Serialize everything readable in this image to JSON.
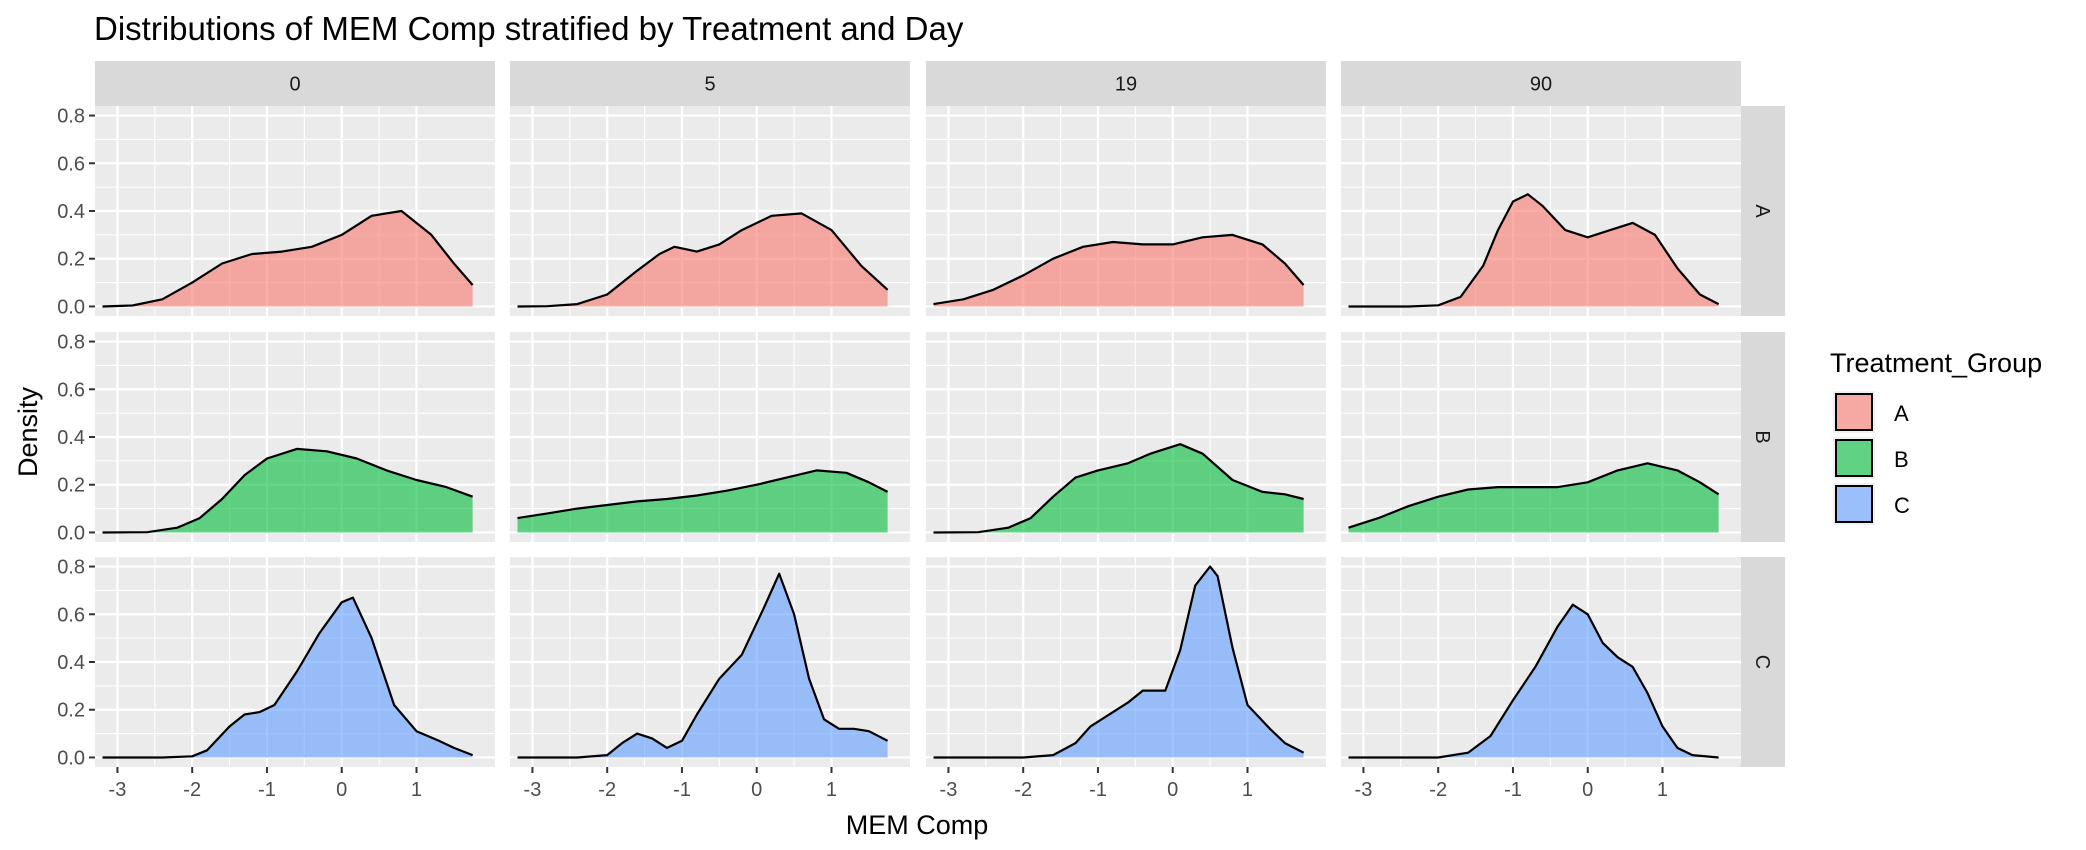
{
  "chart_data": {
    "type": "area",
    "title": "Distributions of MEM Comp stratified by Treatment and Day",
    "xlabel": "MEM Comp",
    "ylabel": "Density",
    "xlim": [
      -3.3,
      2.05
    ],
    "ylim": [
      -0.04,
      0.84
    ],
    "x_ticks": [
      -3,
      -2,
      -1,
      0,
      1
    ],
    "y_ticks": [
      0.0,
      0.2,
      0.4,
      0.6,
      0.8
    ],
    "y_tick_labels": [
      "0.0",
      "0.2",
      "0.4",
      "0.6",
      "0.8"
    ],
    "grid": true,
    "legend": {
      "title": "Treatment_Group",
      "position": "right",
      "items": [
        {
          "label": "A",
          "color": "#F8766D"
        },
        {
          "label": "B",
          "color": "#00BA38"
        },
        {
          "label": "C",
          "color": "#619CFF"
        }
      ]
    },
    "facet_columns": [
      "0",
      "5",
      "19",
      "90"
    ],
    "facet_rows": [
      "A",
      "B",
      "C"
    ],
    "panel_background": "#EBEBEB",
    "strip_background": "#D9D9D9",
    "fill_opacity": 0.6,
    "x_grid": [
      -3.2,
      -3.0,
      -2.6,
      -2.2,
      -1.8,
      -1.4,
      -1.0,
      -0.6,
      -0.2,
      0.2,
      0.6,
      1.0,
      1.4,
      1.8
    ],
    "curves": [
      [
        {
          "x": [
            -3.2,
            -2.8,
            -2.4,
            -2.0,
            -1.6,
            -1.2,
            -0.8,
            -0.4,
            0.0,
            0.4,
            0.8,
            1.2,
            1.5,
            1.75
          ],
          "y": [
            0.0,
            0.004,
            0.03,
            0.1,
            0.18,
            0.22,
            0.23,
            0.25,
            0.3,
            0.38,
            0.4,
            0.3,
            0.18,
            0.09
          ]
        },
        {
          "x": [
            -3.2,
            -2.8,
            -2.4,
            -2.0,
            -1.6,
            -1.3,
            -1.1,
            -0.8,
            -0.5,
            -0.2,
            0.2,
            0.6,
            1.0,
            1.4,
            1.75
          ],
          "y": [
            0.0,
            0.001,
            0.01,
            0.05,
            0.15,
            0.22,
            0.25,
            0.23,
            0.26,
            0.32,
            0.38,
            0.39,
            0.32,
            0.17,
            0.07
          ]
        },
        {
          "x": [
            -3.2,
            -2.8,
            -2.4,
            -2.0,
            -1.6,
            -1.2,
            -0.8,
            -0.4,
            0.0,
            0.4,
            0.8,
            1.2,
            1.5,
            1.75
          ],
          "y": [
            0.01,
            0.03,
            0.07,
            0.13,
            0.2,
            0.25,
            0.27,
            0.26,
            0.26,
            0.29,
            0.3,
            0.26,
            0.18,
            0.09
          ]
        },
        {
          "x": [
            -3.2,
            -2.4,
            -2.0,
            -1.7,
            -1.4,
            -1.2,
            -1.0,
            -0.8,
            -0.6,
            -0.3,
            0.0,
            0.3,
            0.6,
            0.9,
            1.2,
            1.5,
            1.75
          ],
          "y": [
            0.0,
            0.0,
            0.005,
            0.04,
            0.17,
            0.32,
            0.44,
            0.47,
            0.42,
            0.32,
            0.29,
            0.32,
            0.35,
            0.3,
            0.16,
            0.05,
            0.01
          ]
        }
      ],
      [
        {
          "x": [
            -3.2,
            -2.6,
            -2.2,
            -1.9,
            -1.6,
            -1.3,
            -1.0,
            -0.6,
            -0.2,
            0.2,
            0.6,
            1.0,
            1.4,
            1.75
          ],
          "y": [
            0.0,
            0.001,
            0.02,
            0.06,
            0.14,
            0.24,
            0.31,
            0.35,
            0.34,
            0.31,
            0.26,
            0.22,
            0.19,
            0.15
          ]
        },
        {
          "x": [
            -3.2,
            -2.8,
            -2.4,
            -2.0,
            -1.6,
            -1.2,
            -0.8,
            -0.4,
            0.0,
            0.4,
            0.8,
            1.2,
            1.5,
            1.75
          ],
          "y": [
            0.06,
            0.08,
            0.1,
            0.115,
            0.13,
            0.14,
            0.155,
            0.175,
            0.2,
            0.23,
            0.26,
            0.25,
            0.21,
            0.17
          ]
        },
        {
          "x": [
            -3.2,
            -2.6,
            -2.2,
            -1.9,
            -1.6,
            -1.3,
            -1.0,
            -0.6,
            -0.3,
            0.1,
            0.4,
            0.8,
            1.2,
            1.5,
            1.75
          ],
          "y": [
            0.0,
            0.001,
            0.02,
            0.06,
            0.15,
            0.23,
            0.26,
            0.29,
            0.33,
            0.37,
            0.33,
            0.22,
            0.17,
            0.16,
            0.14
          ]
        },
        {
          "x": [
            -3.2,
            -2.8,
            -2.4,
            -2.0,
            -1.6,
            -1.2,
            -0.8,
            -0.4,
            0.0,
            0.4,
            0.8,
            1.2,
            1.5,
            1.75
          ],
          "y": [
            0.02,
            0.06,
            0.11,
            0.15,
            0.18,
            0.19,
            0.19,
            0.19,
            0.21,
            0.26,
            0.29,
            0.26,
            0.21,
            0.16
          ]
        }
      ],
      [
        {
          "x": [
            -3.2,
            -2.4,
            -2.0,
            -1.8,
            -1.5,
            -1.3,
            -1.1,
            -0.9,
            -0.6,
            -0.3,
            0.0,
            0.15,
            0.4,
            0.7,
            1.0,
            1.3,
            1.5,
            1.75
          ],
          "y": [
            0.0,
            0.0,
            0.005,
            0.03,
            0.13,
            0.18,
            0.19,
            0.22,
            0.36,
            0.52,
            0.65,
            0.67,
            0.5,
            0.22,
            0.11,
            0.07,
            0.04,
            0.01
          ]
        },
        {
          "x": [
            -3.2,
            -2.4,
            -2.0,
            -1.8,
            -1.6,
            -1.4,
            -1.2,
            -1.0,
            -0.8,
            -0.5,
            -0.2,
            0.1,
            0.3,
            0.5,
            0.7,
            0.9,
            1.1,
            1.3,
            1.5,
            1.75
          ],
          "y": [
            0.0,
            0.0,
            0.01,
            0.06,
            0.1,
            0.08,
            0.04,
            0.07,
            0.18,
            0.33,
            0.43,
            0.63,
            0.77,
            0.6,
            0.33,
            0.16,
            0.12,
            0.12,
            0.11,
            0.07
          ]
        },
        {
          "x": [
            -3.2,
            -2.0,
            -1.6,
            -1.3,
            -1.1,
            -0.9,
            -0.6,
            -0.4,
            -0.1,
            0.1,
            0.3,
            0.5,
            0.6,
            0.8,
            1.0,
            1.3,
            1.5,
            1.75
          ],
          "y": [
            0.0,
            0.0,
            0.01,
            0.06,
            0.13,
            0.17,
            0.23,
            0.28,
            0.28,
            0.45,
            0.72,
            0.8,
            0.76,
            0.46,
            0.22,
            0.12,
            0.06,
            0.02
          ]
        },
        {
          "x": [
            -3.2,
            -2.0,
            -1.6,
            -1.3,
            -1.0,
            -0.7,
            -0.4,
            -0.2,
            0.0,
            0.2,
            0.4,
            0.6,
            0.8,
            1.0,
            1.2,
            1.4,
            1.75
          ],
          "y": [
            0.0,
            0.0,
            0.02,
            0.09,
            0.24,
            0.38,
            0.55,
            0.64,
            0.6,
            0.48,
            0.42,
            0.38,
            0.27,
            0.13,
            0.04,
            0.01,
            0.0
          ]
        }
      ]
    ]
  }
}
